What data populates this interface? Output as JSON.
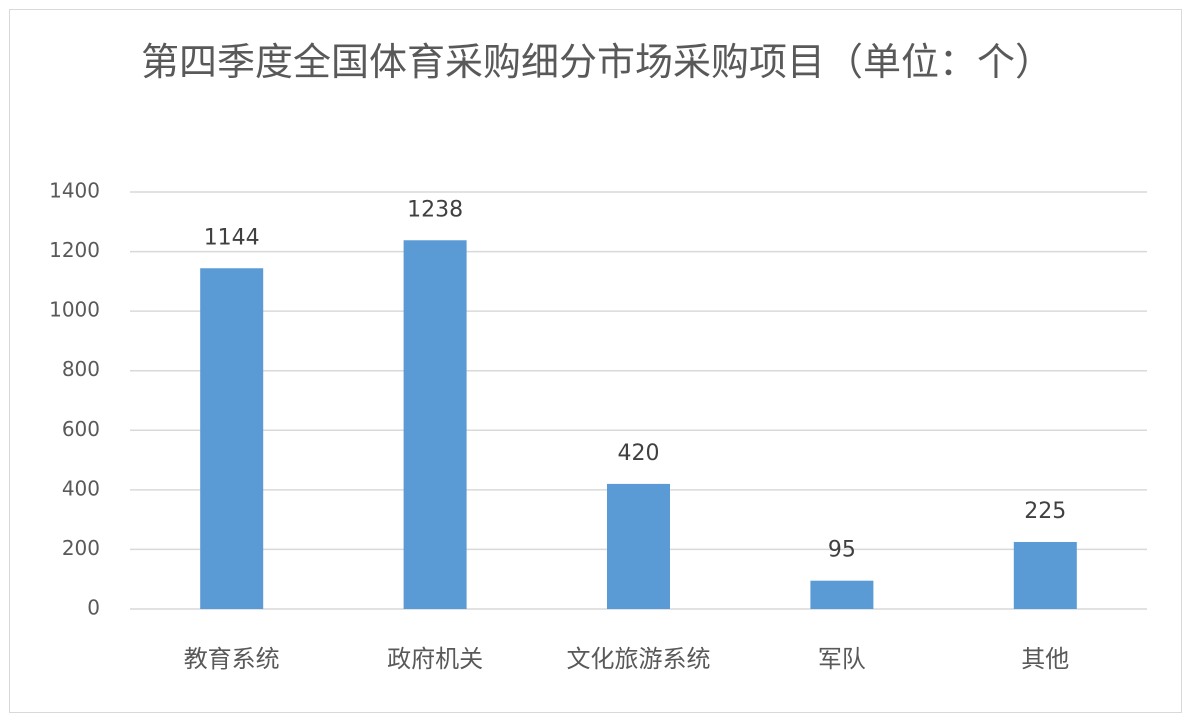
{
  "chart_data": {
    "type": "bar",
    "title": "第四季度全国体育采购细分市场采购项目（单位：个）",
    "categories": [
      "教育系统",
      "政府机关",
      "文化旅游系统",
      "军队",
      "其他"
    ],
    "values": [
      1144,
      1238,
      420,
      95,
      225
    ],
    "color": "#5b9bd5",
    "ylim": [
      0,
      1400
    ],
    "yticks": [
      0,
      200,
      400,
      600,
      800,
      1000,
      1200,
      1400
    ],
    "grid": true
  }
}
